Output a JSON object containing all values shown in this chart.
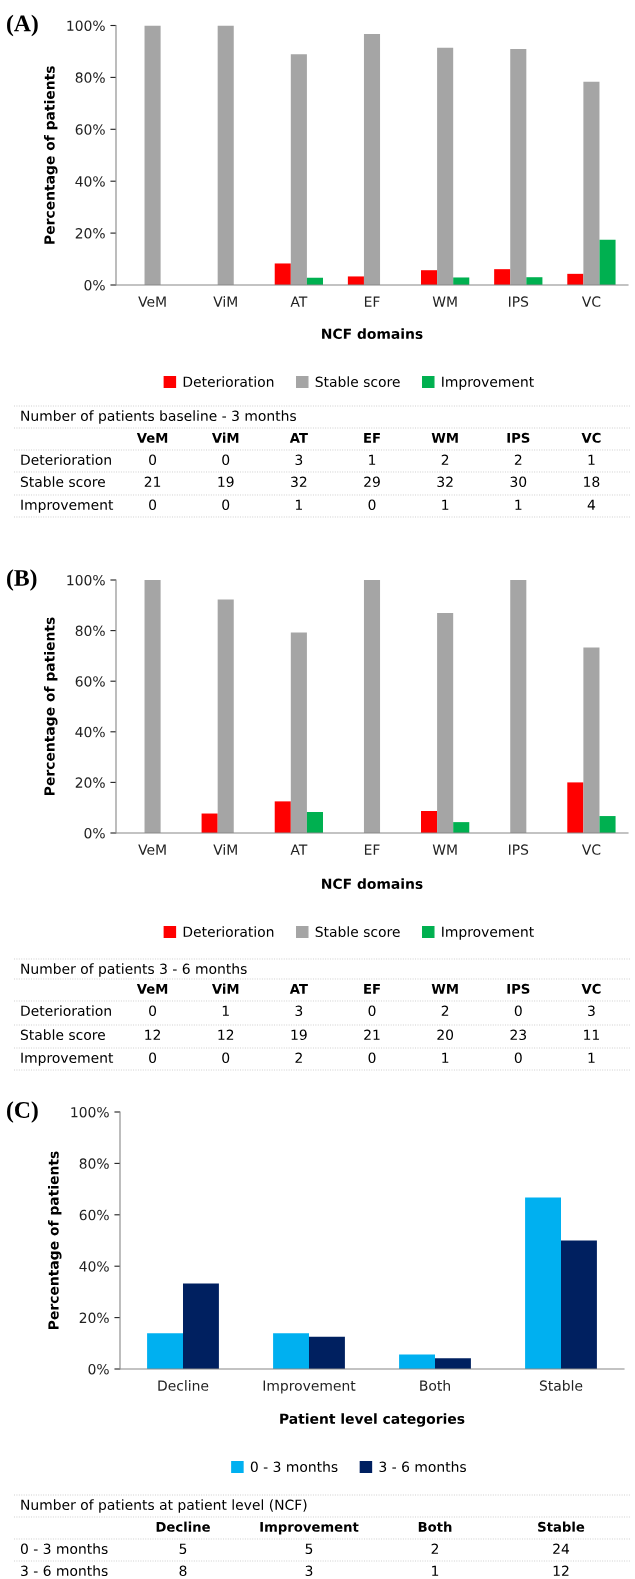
{
  "chart_data": [
    {
      "type": "bar",
      "title": "(A)",
      "ylabel": "Percentage of patients",
      "xlabel": "NCF domains",
      "categories": [
        "VeM",
        "ViM",
        "AT",
        "EF",
        "WM",
        "IPS",
        "VC"
      ],
      "series": [
        {
          "name": "Deterioration",
          "color": "#ff0000",
          "values": [
            0,
            0,
            8.3,
            3.3,
            5.7,
            6.1,
            4.3
          ]
        },
        {
          "name": "Stable score",
          "color": "#a5a5a5",
          "values": [
            100,
            100,
            88.9,
            96.7,
            91.4,
            90.9,
            78.3
          ]
        },
        {
          "name": "Improvement",
          "color": "#00b050",
          "values": [
            0,
            0,
            2.8,
            0,
            2.9,
            3.0,
            17.4
          ]
        }
      ],
      "ylim": [
        0,
        100
      ],
      "yticks": [
        {
          "value": 0,
          "label": "0%"
        },
        {
          "value": 20,
          "label": "20%"
        },
        {
          "value": 40,
          "label": "40%"
        },
        {
          "value": 60,
          "label": "60%"
        },
        {
          "value": 80,
          "label": "80%"
        },
        {
          "value": 100,
          "label": "100%"
        }
      ],
      "legend": "bottom"
    },
    {
      "type": "other",
      "title": "Number of patients baseline - 3 months",
      "categories": [
        "VeM",
        "ViM",
        "AT",
        "EF",
        "WM",
        "IPS",
        "VC"
      ],
      "series": [
        {
          "name": "Deterioration",
          "values": [
            0,
            0,
            3,
            1,
            2,
            2,
            1
          ]
        },
        {
          "name": "Stable score",
          "values": [
            21,
            19,
            32,
            29,
            32,
            30,
            18
          ]
        },
        {
          "name": "Improvement",
          "values": [
            0,
            0,
            1,
            0,
            1,
            1,
            4
          ]
        }
      ],
      "data_labels": true
    },
    {
      "type": "bar",
      "title": "(B)",
      "ylabel": "Percentage of patients",
      "xlabel": "NCF domains",
      "categories": [
        "VeM",
        "ViM",
        "AT",
        "EF",
        "WM",
        "IPS",
        "VC"
      ],
      "series": [
        {
          "name": "Deterioration",
          "color": "#ff0000",
          "values": [
            0,
            7.7,
            12.5,
            0,
            8.7,
            0,
            20.0
          ]
        },
        {
          "name": "Stable score",
          "color": "#a5a5a5",
          "values": [
            100,
            92.3,
            79.2,
            100,
            87.0,
            100,
            73.3
          ]
        },
        {
          "name": "Improvement",
          "color": "#00b050",
          "values": [
            0,
            0,
            8.3,
            0,
            4.3,
            0,
            6.7
          ]
        }
      ],
      "ylim": [
        0,
        100
      ],
      "yticks": [
        {
          "value": 0,
          "label": "0%"
        },
        {
          "value": 20,
          "label": "20%"
        },
        {
          "value": 40,
          "label": "40%"
        },
        {
          "value": 60,
          "label": "60%"
        },
        {
          "value": 80,
          "label": "80%"
        },
        {
          "value": 100,
          "label": "100%"
        }
      ],
      "legend": "bottom"
    },
    {
      "type": "other",
      "title": "Number of patients 3 - 6 months",
      "categories": [
        "VeM",
        "ViM",
        "AT",
        "EF",
        "WM",
        "IPS",
        "VC"
      ],
      "series": [
        {
          "name": "Deterioration",
          "values": [
            0,
            1,
            3,
            0,
            2,
            0,
            3
          ]
        },
        {
          "name": "Stable score",
          "values": [
            12,
            12,
            19,
            21,
            20,
            23,
            11
          ]
        },
        {
          "name": "Improvement",
          "values": [
            0,
            0,
            2,
            0,
            1,
            0,
            1
          ]
        }
      ],
      "data_labels": true
    },
    {
      "type": "bar",
      "title": "(C)",
      "ylabel": "Percentage of patients",
      "xlabel": "Patient level categories",
      "categories": [
        "Decline",
        "Improvement",
        "Both",
        "Stable"
      ],
      "series": [
        {
          "name": "0 - 3 months",
          "color": "#00b0f0",
          "values": [
            13.9,
            13.9,
            5.6,
            66.7
          ]
        },
        {
          "name": "3 - 6 months",
          "color": "#002060",
          "values": [
            33.3,
            12.5,
            4.2,
            50.0
          ]
        }
      ],
      "ylim": [
        0,
        100
      ],
      "yticks": [
        {
          "value": 0,
          "label": "0%"
        },
        {
          "value": 20,
          "label": "20%"
        },
        {
          "value": 40,
          "label": "40%"
        },
        {
          "value": 60,
          "label": "60%"
        },
        {
          "value": 80,
          "label": "80%"
        },
        {
          "value": 100,
          "label": "100%"
        }
      ],
      "legend": "bottom"
    },
    {
      "type": "other",
      "title": "Number of patients at patient level (NCF)",
      "categories": [
        "Decline",
        "Improvement",
        "Both",
        "Stable"
      ],
      "series": [
        {
          "name": "0 - 3 months",
          "values": [
            5,
            5,
            2,
            24
          ]
        },
        {
          "name": "3 - 6 months",
          "values": [
            8,
            3,
            1,
            12
          ]
        }
      ],
      "data_labels": true
    }
  ]
}
